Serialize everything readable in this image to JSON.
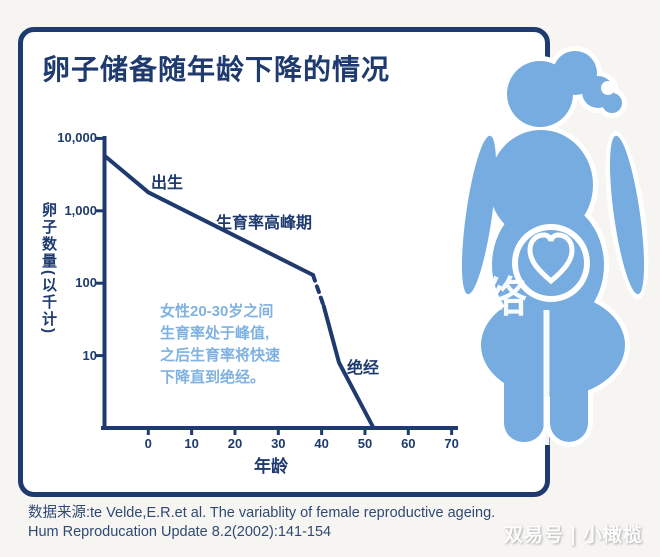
{
  "title": "卵子储备随年龄下降的情况",
  "colors": {
    "navy": "#1e3a6e",
    "light_blue_text": "#7fb2e2",
    "figure_blue": "#76acdf",
    "page_background": "#f7f5f2",
    "card_background": "#ffffff",
    "source_text": "#2e4a74"
  },
  "chart_data": {
    "type": "line",
    "title": "卵子储备随年龄下降的情况",
    "xlabel": "年龄",
    "ylabel": "卵子数量(以千计)",
    "y_scale": "log",
    "grid": false,
    "legend": "none",
    "y_tick_labels": [
      "10,000",
      "1,000",
      "100",
      "10"
    ],
    "y_tick_values": [
      10000,
      1000,
      100,
      10
    ],
    "x_ticks": [
      0,
      10,
      20,
      30,
      40,
      50,
      60,
      70
    ],
    "xlim": [
      -10,
      70
    ],
    "ylim": [
      1,
      10000
    ],
    "series": [
      {
        "name": "卵子数量(以千计)",
        "points": [
          {
            "age": -10,
            "thousands": 5700
          },
          {
            "age": 0,
            "thousands": 1800
          },
          {
            "age": 38,
            "thousands": 130,
            "dash_to_next": true
          },
          {
            "age": 40.5,
            "thousands": 48
          },
          {
            "age": 44,
            "thousands": 8
          },
          {
            "age": 52,
            "thousands": 1
          }
        ]
      }
    ],
    "label_birth": "出生",
    "label_peak": "生育率高峰期",
    "label_menopause": "绝经",
    "callout_lines": [
      "女性20-30岁之间",
      "生育率处于峰值,",
      "之后生育率将快速",
      "下降直到绝经。"
    ]
  },
  "source": {
    "line1": "数据来源:te Velde,E.R.et al. The variablity of female reproductive ageing.",
    "line2": "Hum Reproducation Update 8.2(2002):141-154"
  },
  "watermark": {
    "bottom_right": "双易号 | 小橄榄",
    "figure_overlay": "络"
  }
}
